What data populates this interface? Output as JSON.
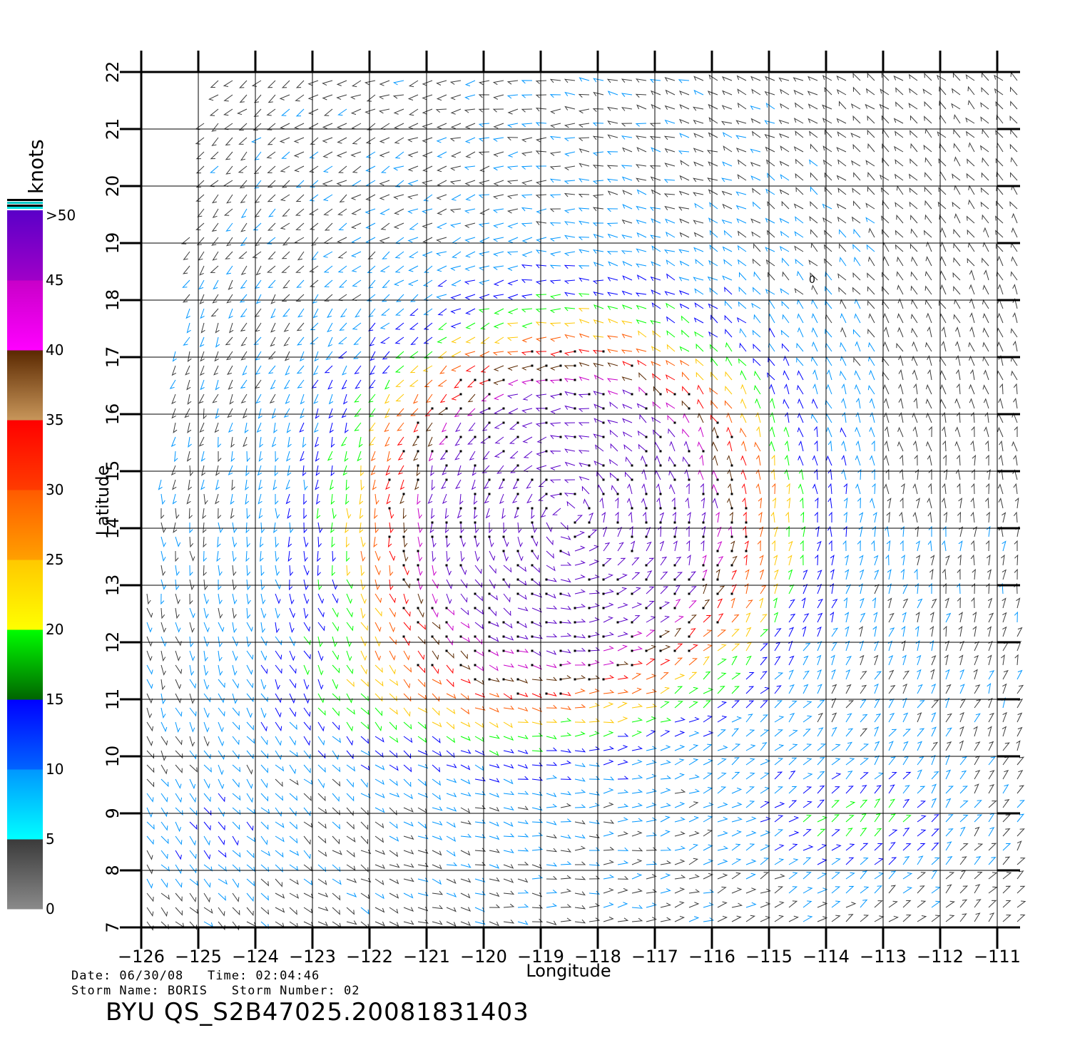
{
  "map": {
    "xlabel": "Longitude",
    "ylabel": "Latitude",
    "lon_range": [
      -126,
      -110.5
    ],
    "lat_range": [
      7,
      22
    ],
    "lon_ticks": [
      "−126",
      "−125",
      "−124",
      "−123",
      "−122",
      "−121",
      "−120",
      "−119",
      "−118",
      "−117",
      "−116",
      "−115",
      "−114",
      "−113",
      "−112",
      "−111"
    ],
    "lat_ticks": [
      "7",
      "8",
      "9",
      "10",
      "11",
      "12",
      "13",
      "14",
      "15",
      "16",
      "17",
      "18",
      "19",
      "20",
      "21",
      "22"
    ],
    "grid": true,
    "storm_center": {
      "lon": -118.5,
      "lat": 14.2,
      "label": ""
    },
    "markers": [
      {
        "label": "0",
        "lon": -114.3,
        "lat": 18.3
      }
    ]
  },
  "legend": {
    "unit": "knots",
    "labels": [
      ">50",
      "45",
      "40",
      "35",
      "30",
      "25",
      "20",
      "15",
      "10",
      "5",
      "0"
    ],
    "bands": [
      {
        "min": 0,
        "max": 5,
        "color_top": "#3a3a3a",
        "color_bottom": "#8a8a8a"
      },
      {
        "min": 5,
        "max": 10,
        "color_top": "#0096ff",
        "color_bottom": "#00ffff"
      },
      {
        "min": 10,
        "max": 15,
        "color_top": "#0000ff",
        "color_bottom": "#0064ff"
      },
      {
        "min": 15,
        "max": 20,
        "color_top": "#00ff00",
        "color_bottom": "#006400"
      },
      {
        "min": 20,
        "max": 25,
        "color_top": "#ffc800",
        "color_bottom": "#ffff00"
      },
      {
        "min": 25,
        "max": 30,
        "color_top": "#ff5a00",
        "color_bottom": "#ffa000"
      },
      {
        "min": 30,
        "max": 35,
        "color_top": "#ff0000",
        "color_bottom": "#ff3c00"
      },
      {
        "min": 35,
        "max": 40,
        "color_top": "#5a2800",
        "color_bottom": "#c8965a"
      },
      {
        "min": 40,
        "max": 45,
        "color_top": "#c800c8",
        "color_bottom": "#ff00ff"
      },
      {
        "min": 45,
        "max": 50,
        "color_top": "#5a00c8",
        "color_bottom": "#a000c8"
      }
    ]
  },
  "meta": {
    "date_line": "Date: 06/30/08   Time: 02:04:46",
    "storm_line": "Storm Name: BORIS   Storm Number: 02",
    "title": "BYU QS_S2B47025.20081831403"
  }
}
